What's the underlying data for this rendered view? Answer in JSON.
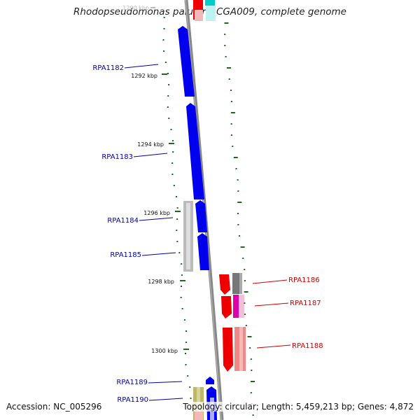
{
  "title": "Rhodopseudomonas palustris CGA009, complete genome",
  "footer": {
    "accession": "Accession: NC_005296",
    "summary": "Topology: circular; Length: 5,459,213 bp; Genes: 4,872"
  },
  "colors": {
    "forward_gene": "#0000ee",
    "reverse_gene": "#ee0000",
    "forward_label": "#0000aa",
    "reverse_label": "#cc0000",
    "backbone": "#888888",
    "tick": "#226622"
  },
  "ruler": [
    {
      "label": "1290 kbp",
      "faded": true
    },
    {
      "label": "1292 kbp"
    },
    {
      "label": "1294 kbp"
    },
    {
      "label": "1296 kbp"
    },
    {
      "label": "1298 kbp"
    },
    {
      "label": "1300 kbp"
    }
  ],
  "genes": [
    {
      "label": "RPA1182",
      "strand": "forward"
    },
    {
      "label": "RPA1183",
      "strand": "forward"
    },
    {
      "label": "RPA1184",
      "strand": "forward"
    },
    {
      "label": "RPA1185",
      "strand": "forward"
    },
    {
      "label": "RPA1186",
      "strand": "reverse"
    },
    {
      "label": "RPA1187",
      "strand": "reverse"
    },
    {
      "label": "RPA1188",
      "strand": "reverse"
    },
    {
      "label": "RPA1189",
      "strand": "forward"
    },
    {
      "label": "RPA1190",
      "strand": "forward"
    }
  ]
}
